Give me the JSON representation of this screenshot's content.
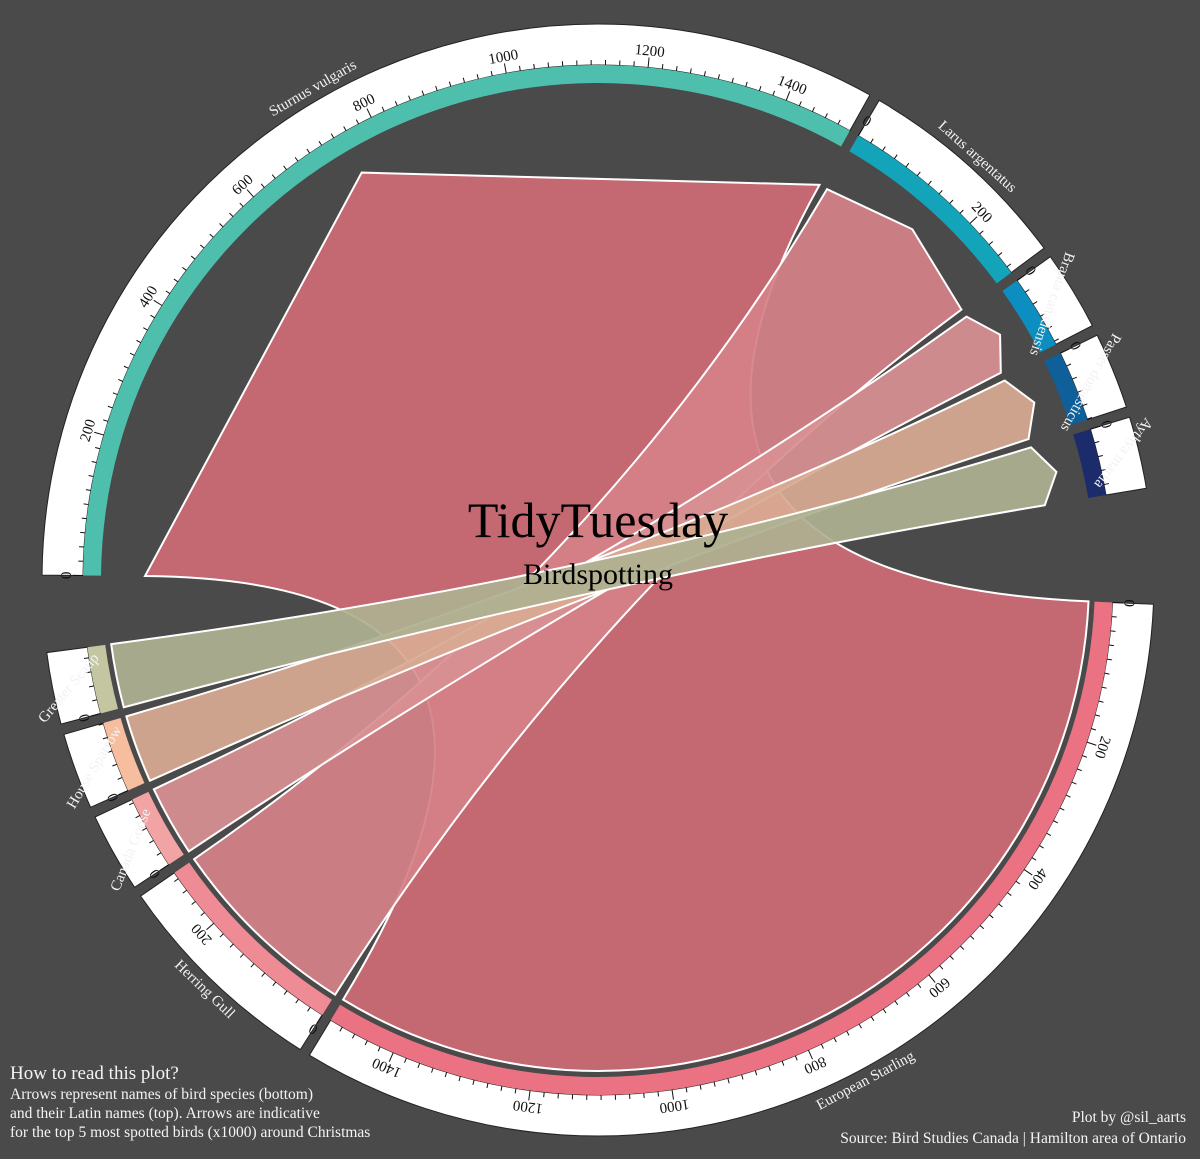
{
  "chart_data": {
    "type": "chord",
    "title": "TidyTuesday",
    "subtitle": "Birdspotting",
    "top_sectors": [
      {
        "name": "Sturnus vulgaris",
        "value": 1499,
        "color": "#4fbfad",
        "ticks": [
          "0",
          "200",
          "400",
          "600",
          "800",
          "1000",
          "1200",
          "1400"
        ]
      },
      {
        "name": "Larus argentatus",
        "value": 290,
        "color": "#13a4b9",
        "ticks": [
          "0",
          "200"
        ]
      },
      {
        "name": "Branta canadensis",
        "value": 105,
        "color": "#0d8ec0",
        "ticks": [
          "0"
        ]
      },
      {
        "name": "Passer domesticus",
        "value": 101,
        "color": "#0e5f9a",
        "ticks": [
          "0"
        ]
      },
      {
        "name": "Aythya marila",
        "value": 95,
        "color": "#1b2b6b",
        "ticks": [
          "0"
        ]
      }
    ],
    "bottom_sectors": [
      {
        "name": "European Starling",
        "value": 1499,
        "color": "#ea7282",
        "ticks": [
          "0",
          "200",
          "400",
          "600",
          "800",
          "1000",
          "1200",
          "1400"
        ]
      },
      {
        "name": "Herring Gull",
        "value": 290,
        "color": "#ef8b95",
        "ticks": [
          "0",
          "200"
        ]
      },
      {
        "name": "Canada Goose",
        "value": 105,
        "color": "#f2a3a3",
        "ticks": [
          "0"
        ]
      },
      {
        "name": "House Sparrow",
        "value": 101,
        "color": "#f7bd9f",
        "ticks": [
          "0"
        ]
      },
      {
        "name": "Greater Scaup",
        "value": 95,
        "color": "#c4c6a2",
        "ticks": [
          "0"
        ]
      }
    ],
    "links": [
      {
        "from": "European Starling",
        "to": "Sturnus vulgaris",
        "value": 1499,
        "color": "#cd6a75"
      },
      {
        "from": "Herring Gull",
        "to": "Larus argentatus",
        "value": 290,
        "color": "#d48187"
      },
      {
        "from": "Canada Goose",
        "to": "Branta canadensis",
        "value": 105,
        "color": "#d89092"
      },
      {
        "from": "House Sparrow",
        "to": "Passer domesticus",
        "value": 101,
        "color": "#d8aa92"
      },
      {
        "from": "Greater Scaup",
        "to": "Aythya marila",
        "value": 95,
        "color": "#aeb091"
      }
    ]
  },
  "notes": {
    "how_title": "How to read this plot?",
    "how_lines": [
      "Arrows represent names of bird species (bottom)",
      "and their Latin names (top). Arrows are indicative",
      "for the top 5 most spotted birds (x1000) around Christmas"
    ],
    "credit_lines": [
      "Plot by @sil_aarts",
      "Source: Bird Studies Canada | Hamilton area of Ontario"
    ]
  }
}
